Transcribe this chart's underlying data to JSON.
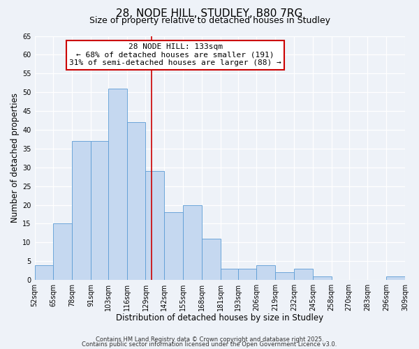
{
  "title": "28, NODE HILL, STUDLEY, B80 7RG",
  "subtitle": "Size of property relative to detached houses in Studley",
  "xlabel": "Distribution of detached houses by size in Studley",
  "ylabel": "Number of detached properties",
  "bin_labels": [
    "52sqm",
    "65sqm",
    "78sqm",
    "91sqm",
    "103sqm",
    "116sqm",
    "129sqm",
    "142sqm",
    "155sqm",
    "168sqm",
    "181sqm",
    "193sqm",
    "206sqm",
    "219sqm",
    "232sqm",
    "245sqm",
    "258sqm",
    "270sqm",
    "283sqm",
    "296sqm",
    "309sqm"
  ],
  "bar_values": [
    4,
    15,
    37,
    37,
    51,
    42,
    29,
    18,
    20,
    11,
    3,
    3,
    4,
    2,
    3,
    1,
    0,
    0,
    0,
    1
  ],
  "bin_edges": [
    52,
    65,
    78,
    91,
    103,
    116,
    129,
    142,
    155,
    168,
    181,
    193,
    206,
    219,
    232,
    245,
    258,
    270,
    283,
    296,
    309
  ],
  "bar_color": "#c5d8f0",
  "bar_edge_color": "#5b9bd5",
  "vline_x": 133,
  "vline_color": "#cc0000",
  "ylim": [
    0,
    65
  ],
  "yticks": [
    0,
    5,
    10,
    15,
    20,
    25,
    30,
    35,
    40,
    45,
    50,
    55,
    60,
    65
  ],
  "bg_color": "#eef2f8",
  "grid_color": "#ffffff",
  "annotation_title": "28 NODE HILL: 133sqm",
  "annotation_line1": "← 68% of detached houses are smaller (191)",
  "annotation_line2": "31% of semi-detached houses are larger (88) →",
  "annotation_box_color": "#ffffff",
  "annotation_box_edge": "#cc0000",
  "footer_line1": "Contains HM Land Registry data © Crown copyright and database right 2025.",
  "footer_line2": "Contains public sector information licensed under the Open Government Licence v3.0.",
  "title_fontsize": 11,
  "subtitle_fontsize": 9,
  "axis_label_fontsize": 8.5,
  "tick_fontsize": 7,
  "annotation_fontsize": 8,
  "footer_fontsize": 6
}
